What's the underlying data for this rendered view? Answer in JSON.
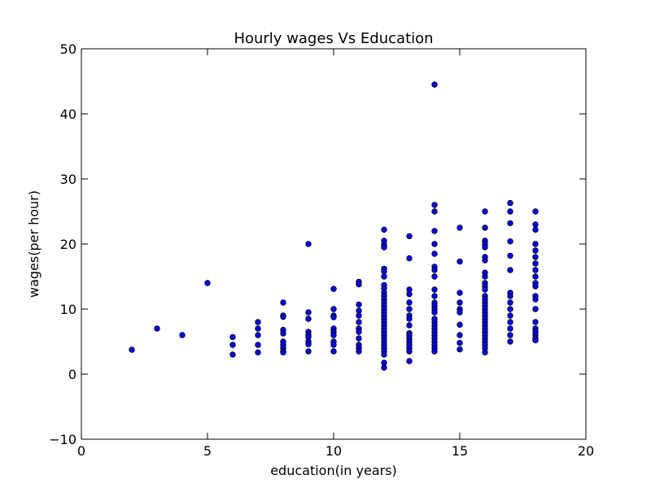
{
  "chart_data": {
    "type": "scatter",
    "title": "Hourly wages Vs Education",
    "xlabel": "education(in years)",
    "ylabel": "wages(per hour)",
    "xlim": [
      0,
      20
    ],
    "ylim": [
      -10,
      50
    ],
    "xticks": [
      0,
      5,
      10,
      15,
      20
    ],
    "yticks": [
      -10,
      0,
      10,
      20,
      30,
      40,
      50
    ],
    "xtick_labels": [
      "0",
      "5",
      "10",
      "15",
      "20"
    ],
    "ytick_labels": [
      "−10",
      "0",
      "10",
      "20",
      "30",
      "40",
      "50"
    ],
    "grid": false,
    "marker_color": "#0000ff",
    "marker_edge_color": "#000000",
    "points": [
      [
        2,
        3.75
      ],
      [
        3,
        7.0
      ],
      [
        4,
        6.0
      ],
      [
        5,
        14.0
      ],
      [
        6,
        5.7
      ],
      [
        6,
        4.5
      ],
      [
        6,
        3.0
      ],
      [
        7,
        8.0
      ],
      [
        7,
        7.0
      ],
      [
        7,
        6.0
      ],
      [
        7,
        4.5
      ],
      [
        7,
        3.35
      ],
      [
        8,
        11.0
      ],
      [
        8,
        9.0
      ],
      [
        8,
        8.8
      ],
      [
        8,
        6.8
      ],
      [
        8,
        6.25
      ],
      [
        8,
        5.0
      ],
      [
        8,
        4.5
      ],
      [
        8,
        4.0
      ],
      [
        8,
        3.5
      ],
      [
        8,
        3.35
      ],
      [
        9,
        20.0
      ],
      [
        9,
        9.5
      ],
      [
        9,
        8.5
      ],
      [
        9,
        6.5
      ],
      [
        9,
        6.0
      ],
      [
        9,
        5.7
      ],
      [
        9,
        5.0
      ],
      [
        9,
        4.6
      ],
      [
        9,
        3.5
      ],
      [
        10,
        13.1
      ],
      [
        10,
        10.0
      ],
      [
        10,
        9.0
      ],
      [
        10,
        8.75
      ],
      [
        10,
        7.0
      ],
      [
        10,
        6.5
      ],
      [
        10,
        6.0
      ],
      [
        10,
        5.0
      ],
      [
        10,
        4.5
      ],
      [
        10,
        3.5
      ],
      [
        11,
        14.2
      ],
      [
        11,
        13.8
      ],
      [
        11,
        10.7
      ],
      [
        11,
        9.75
      ],
      [
        11,
        9.0
      ],
      [
        11,
        8.0
      ],
      [
        11,
        7.0
      ],
      [
        11,
        6.5
      ],
      [
        11,
        5.5
      ],
      [
        11,
        4.5
      ],
      [
        11,
        4.0
      ],
      [
        11,
        3.5
      ],
      [
        12,
        22.2
      ],
      [
        12,
        20.5
      ],
      [
        12,
        19.9
      ],
      [
        12,
        19.5
      ],
      [
        12,
        16.2
      ],
      [
        12,
        15.8
      ],
      [
        12,
        15.0
      ],
      [
        12,
        13.7
      ],
      [
        12,
        13.2
      ],
      [
        12,
        12.5
      ],
      [
        12,
        12.0
      ],
      [
        12,
        11.5
      ],
      [
        12,
        11.0
      ],
      [
        12,
        10.5
      ],
      [
        12,
        10.0
      ],
      [
        12,
        9.5
      ],
      [
        12,
        9.0
      ],
      [
        12,
        8.5
      ],
      [
        12,
        8.0
      ],
      [
        12,
        7.5
      ],
      [
        12,
        7.0
      ],
      [
        12,
        6.5
      ],
      [
        12,
        6.0
      ],
      [
        12,
        5.5
      ],
      [
        12,
        5.0
      ],
      [
        12,
        4.5
      ],
      [
        12,
        4.0
      ],
      [
        12,
        3.5
      ],
      [
        12,
        3.0
      ],
      [
        12,
        1.75
      ],
      [
        12,
        1.0
      ],
      [
        13,
        21.2
      ],
      [
        13,
        17.8
      ],
      [
        13,
        13.0
      ],
      [
        13,
        12.3
      ],
      [
        13,
        11.0
      ],
      [
        13,
        10.0
      ],
      [
        13,
        9.0
      ],
      [
        13,
        8.5
      ],
      [
        13,
        7.5
      ],
      [
        13,
        6.3
      ],
      [
        13,
        6.0
      ],
      [
        13,
        5.5
      ],
      [
        13,
        5.0
      ],
      [
        13,
        4.5
      ],
      [
        13,
        4.0
      ],
      [
        13,
        3.5
      ],
      [
        13,
        2.0
      ],
      [
        14,
        44.5
      ],
      [
        14,
        26.0
      ],
      [
        14,
        25.0
      ],
      [
        14,
        22.0
      ],
      [
        14,
        20.0
      ],
      [
        14,
        18.5
      ],
      [
        14,
        16.5
      ],
      [
        14,
        16.0
      ],
      [
        14,
        15.0
      ],
      [
        14,
        13.0
      ],
      [
        14,
        12.0
      ],
      [
        14,
        11.0
      ],
      [
        14,
        10.5
      ],
      [
        14,
        10.0
      ],
      [
        14,
        9.5
      ],
      [
        14,
        8.5
      ],
      [
        14,
        8.0
      ],
      [
        14,
        7.5
      ],
      [
        14,
        7.0
      ],
      [
        14,
        6.5
      ],
      [
        14,
        6.0
      ],
      [
        14,
        5.5
      ],
      [
        14,
        5.0
      ],
      [
        14,
        4.5
      ],
      [
        14,
        4.0
      ],
      [
        14,
        3.5
      ],
      [
        15,
        22.5
      ],
      [
        15,
        17.3
      ],
      [
        15,
        12.5
      ],
      [
        15,
        11.0
      ],
      [
        15,
        10.0
      ],
      [
        15,
        9.5
      ],
      [
        15,
        7.6
      ],
      [
        15,
        6.0
      ],
      [
        15,
        4.8
      ],
      [
        15,
        3.8
      ],
      [
        16,
        25.0
      ],
      [
        16,
        22.5
      ],
      [
        16,
        20.5
      ],
      [
        16,
        20.0
      ],
      [
        16,
        19.5
      ],
      [
        16,
        18.0
      ],
      [
        16,
        17.5
      ],
      [
        16,
        15.6
      ],
      [
        16,
        15.0
      ],
      [
        16,
        14.0
      ],
      [
        16,
        13.5
      ],
      [
        16,
        13.0
      ],
      [
        16,
        12.0
      ],
      [
        16,
        11.5
      ],
      [
        16,
        11.0
      ],
      [
        16,
        10.5
      ],
      [
        16,
        10.0
      ],
      [
        16,
        9.5
      ],
      [
        16,
        9.0
      ],
      [
        16,
        8.5
      ],
      [
        16,
        8.0
      ],
      [
        16,
        7.5
      ],
      [
        16,
        7.0
      ],
      [
        16,
        6.5
      ],
      [
        16,
        6.0
      ],
      [
        16,
        5.5
      ],
      [
        16,
        5.0
      ],
      [
        16,
        4.5
      ],
      [
        16,
        4.0
      ],
      [
        16,
        3.35
      ],
      [
        17,
        26.3
      ],
      [
        17,
        25.0
      ],
      [
        17,
        23.2
      ],
      [
        17,
        20.4
      ],
      [
        17,
        18.2
      ],
      [
        17,
        16.0
      ],
      [
        17,
        12.5
      ],
      [
        17,
        12.0
      ],
      [
        17,
        11.0
      ],
      [
        17,
        10.0
      ],
      [
        17,
        9.0
      ],
      [
        17,
        8.0
      ],
      [
        17,
        7.0
      ],
      [
        17,
        6.0
      ],
      [
        17,
        5.0
      ],
      [
        18,
        25.0
      ],
      [
        18,
        23.0
      ],
      [
        18,
        22.2
      ],
      [
        18,
        20.0
      ],
      [
        18,
        19.0
      ],
      [
        18,
        18.0
      ],
      [
        18,
        17.0
      ],
      [
        18,
        16.0
      ],
      [
        18,
        15.0
      ],
      [
        18,
        14.0
      ],
      [
        18,
        13.5
      ],
      [
        18,
        12.0
      ],
      [
        18,
        11.5
      ],
      [
        18,
        10.0
      ],
      [
        18,
        8.0
      ],
      [
        18,
        7.0
      ],
      [
        18,
        6.5
      ],
      [
        18,
        6.0
      ],
      [
        18,
        5.5
      ],
      [
        18,
        5.2
      ]
    ]
  }
}
